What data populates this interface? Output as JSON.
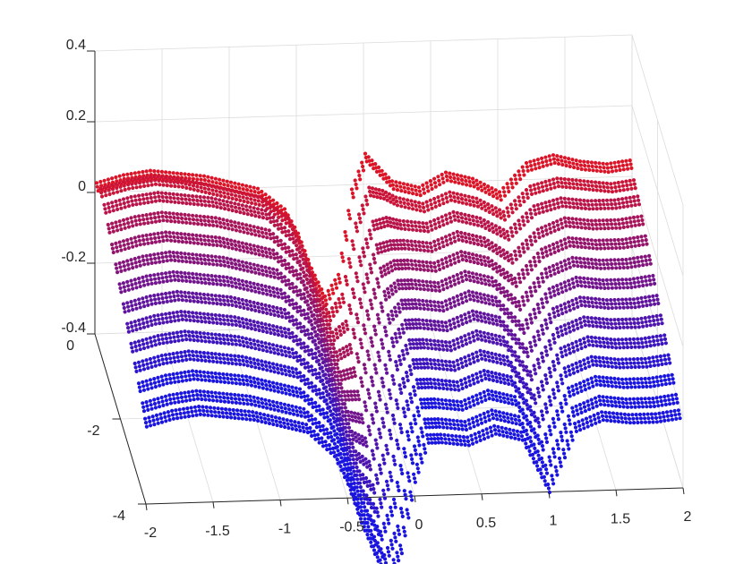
{
  "chart_data": {
    "type": "scatter3d",
    "title": "",
    "xlabel": "",
    "ylabel": "",
    "zlabel": "",
    "xlim": [
      -2,
      2
    ],
    "ylim": [
      -4,
      0
    ],
    "zlim": [
      -0.4,
      0.4
    ],
    "grid": true,
    "x_ticks": [
      -2,
      -1.5,
      -1,
      -0.5,
      0,
      0.5,
      1,
      1.5,
      2
    ],
    "y_ticks": [
      0,
      -2,
      -4
    ],
    "z_ticks": [
      0.4,
      0.2,
      0,
      -0.2,
      -0.4
    ],
    "x_tick_labels": [
      "-2",
      "-1.5",
      "-1",
      "-0.5",
      "0",
      "0.5",
      "1",
      "1.5",
      "2"
    ],
    "y_tick_labels": [
      "0",
      "-2",
      "-4"
    ],
    "z_tick_labels": [
      "0.4",
      "0.2",
      "0",
      "-0.2",
      "-0.4"
    ],
    "color_start": "#e8141c",
    "color_end": "#1a14e0",
    "series_count": 14,
    "note_series": "Each series is one curve z(x) at fixed y; color shifts from red (y near 0, top) to blue (further back, lower z).",
    "x_samples": [
      -2.0,
      -1.8,
      -1.6,
      -1.4,
      -1.2,
      -1.0,
      -0.8,
      -0.6,
      -0.5,
      -0.4,
      -0.3,
      -0.2,
      -0.1,
      0.0,
      0.1,
      0.2,
      0.4,
      0.6,
      0.8,
      1.0,
      1.2,
      1.4,
      1.6,
      1.8,
      2.0
    ],
    "series": [
      {
        "y": -0.2,
        "z": [
          0.04,
          0.06,
          0.07,
          0.06,
          0.05,
          0.03,
          0.01,
          -0.05,
          -0.12,
          -0.22,
          -0.3,
          -0.24,
          0.0,
          0.1,
          0.06,
          0.02,
          0.0,
          0.04,
          0.02,
          -0.02,
          0.06,
          0.08,
          0.06,
          0.05,
          0.06
        ]
      },
      {
        "y": -0.5,
        "z": [
          0.06,
          0.08,
          0.09,
          0.08,
          0.06,
          0.04,
          0.02,
          -0.04,
          -0.12,
          -0.23,
          -0.31,
          -0.26,
          -0.06,
          0.04,
          0.03,
          0.01,
          -0.01,
          0.02,
          0.0,
          -0.04,
          0.03,
          0.05,
          0.04,
          0.03,
          0.04
        ]
      },
      {
        "y": -0.8,
        "z": [
          0.05,
          0.07,
          0.08,
          0.07,
          0.06,
          0.04,
          0.02,
          -0.05,
          -0.13,
          -0.24,
          -0.33,
          -0.3,
          -0.12,
          -0.02,
          -0.01,
          -0.02,
          -0.03,
          0.0,
          -0.02,
          -0.06,
          0.01,
          0.03,
          0.02,
          0.02,
          0.03
        ]
      },
      {
        "y": -1.1,
        "z": [
          0.03,
          0.05,
          0.06,
          0.05,
          0.04,
          0.02,
          0.0,
          -0.07,
          -0.15,
          -0.26,
          -0.35,
          -0.33,
          -0.16,
          -0.05,
          -0.04,
          -0.04,
          -0.05,
          -0.02,
          -0.04,
          -0.09,
          -0.02,
          0.01,
          0.0,
          0.0,
          0.01
        ]
      },
      {
        "y": -1.4,
        "z": [
          0.01,
          0.03,
          0.04,
          0.03,
          0.02,
          0.0,
          -0.02,
          -0.09,
          -0.17,
          -0.28,
          -0.37,
          -0.36,
          -0.2,
          -0.08,
          -0.06,
          -0.06,
          -0.07,
          -0.04,
          -0.06,
          -0.12,
          -0.04,
          -0.01,
          -0.02,
          -0.02,
          -0.01
        ]
      },
      {
        "y": -1.7,
        "z": [
          -0.01,
          0.01,
          0.02,
          0.01,
          0.0,
          -0.02,
          -0.04,
          -0.11,
          -0.19,
          -0.3,
          -0.39,
          -0.39,
          -0.24,
          -0.11,
          -0.08,
          -0.08,
          -0.09,
          -0.06,
          -0.08,
          -0.15,
          -0.06,
          -0.03,
          -0.04,
          -0.04,
          -0.03
        ]
      },
      {
        "y": -2.0,
        "z": [
          -0.03,
          -0.01,
          0.0,
          -0.01,
          -0.02,
          -0.04,
          -0.06,
          -0.13,
          -0.21,
          -0.32,
          -0.41,
          -0.42,
          -0.28,
          -0.14,
          -0.1,
          -0.1,
          -0.11,
          -0.08,
          -0.1,
          -0.18,
          -0.08,
          -0.05,
          -0.06,
          -0.06,
          -0.05
        ]
      },
      {
        "y": -2.3,
        "z": [
          -0.05,
          -0.03,
          -0.02,
          -0.03,
          -0.04,
          -0.06,
          -0.08,
          -0.15,
          -0.23,
          -0.34,
          -0.43,
          -0.45,
          -0.32,
          -0.17,
          -0.12,
          -0.12,
          -0.13,
          -0.1,
          -0.12,
          -0.21,
          -0.1,
          -0.07,
          -0.08,
          -0.08,
          -0.07
        ]
      },
      {
        "y": -2.6,
        "z": [
          -0.07,
          -0.05,
          -0.04,
          -0.05,
          -0.06,
          -0.08,
          -0.1,
          -0.17,
          -0.25,
          -0.36,
          -0.45,
          -0.48,
          -0.36,
          -0.2,
          -0.14,
          -0.14,
          -0.15,
          -0.12,
          -0.14,
          -0.24,
          -0.12,
          -0.09,
          -0.1,
          -0.1,
          -0.09
        ]
      },
      {
        "y": -2.9,
        "z": [
          -0.09,
          -0.07,
          -0.06,
          -0.07,
          -0.08,
          -0.1,
          -0.12,
          -0.19,
          -0.27,
          -0.38,
          -0.47,
          -0.51,
          -0.4,
          -0.23,
          -0.16,
          -0.16,
          -0.17,
          -0.14,
          -0.16,
          -0.27,
          -0.14,
          -0.11,
          -0.12,
          -0.12,
          -0.11
        ]
      },
      {
        "y": -3.2,
        "z": [
          -0.11,
          -0.09,
          -0.08,
          -0.09,
          -0.1,
          -0.12,
          -0.14,
          -0.21,
          -0.29,
          -0.4,
          -0.49,
          -0.54,
          -0.44,
          -0.26,
          -0.18,
          -0.18,
          -0.19,
          -0.16,
          -0.18,
          -0.3,
          -0.16,
          -0.13,
          -0.14,
          -0.14,
          -0.13
        ]
      },
      {
        "y": -3.5,
        "z": [
          -0.13,
          -0.11,
          -0.1,
          -0.11,
          -0.12,
          -0.14,
          -0.16,
          -0.23,
          -0.31,
          -0.42,
          -0.51,
          -0.57,
          -0.48,
          -0.29,
          -0.2,
          -0.2,
          -0.21,
          -0.18,
          -0.2,
          -0.33,
          -0.18,
          -0.15,
          -0.16,
          -0.16,
          -0.15
        ]
      },
      {
        "y": -3.8,
        "z": [
          -0.15,
          -0.13,
          -0.12,
          -0.13,
          -0.14,
          -0.16,
          -0.18,
          -0.25,
          -0.33,
          -0.44,
          -0.53,
          -0.6,
          -0.52,
          -0.32,
          -0.22,
          -0.22,
          -0.23,
          -0.2,
          -0.22,
          -0.36,
          -0.2,
          -0.17,
          -0.18,
          -0.18,
          -0.17
        ]
      },
      {
        "y": -4.0,
        "z": [
          -0.17,
          -0.15,
          -0.14,
          -0.15,
          -0.16,
          -0.18,
          -0.2,
          -0.27,
          -0.35,
          -0.46,
          -0.55,
          -0.63,
          -0.55,
          -0.35,
          -0.24,
          -0.24,
          -0.25,
          -0.22,
          -0.24,
          -0.39,
          -0.22,
          -0.19,
          -0.2,
          -0.2,
          -0.19
        ]
      }
    ]
  }
}
